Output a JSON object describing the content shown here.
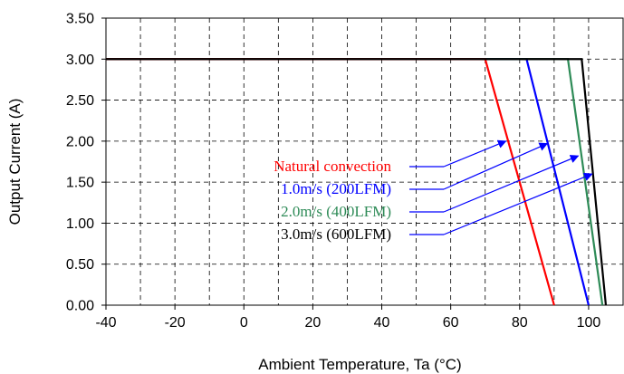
{
  "chart_data": {
    "type": "line",
    "title": "",
    "xlabel": "Ambient Temperature, Ta (°C)",
    "ylabel": "Output Current (A)",
    "xlim": [
      -40,
      110
    ],
    "ylim": [
      0,
      3.5
    ],
    "x_ticks": [
      -40,
      -20,
      0,
      20,
      40,
      60,
      80,
      100
    ],
    "y_ticks": [
      0,
      0.5,
      1,
      1.5,
      2,
      2.5,
      3,
      3.5
    ],
    "x_tick_labels": [
      "-40",
      "-20",
      "0",
      "20",
      "40",
      "60",
      "80",
      "100"
    ],
    "y_tick_labels": [
      "0.00",
      "0.50",
      "1.00",
      "1.50",
      "2.00",
      "2.50",
      "3.00",
      "3.50"
    ],
    "grid": true,
    "series": [
      {
        "name": "Natural convection",
        "color": "#ff0000",
        "x": [
          -40,
          70,
          90
        ],
        "y": [
          3.0,
          3.0,
          0.0
        ]
      },
      {
        "name": "1.0m/s (200LFM)",
        "color": "#0000ff",
        "x": [
          -40,
          82,
          100
        ],
        "y": [
          3.0,
          3.0,
          0.0
        ]
      },
      {
        "name": "2.0m/s (400LFM)",
        "color": "#2e8b57",
        "x": [
          -40,
          94,
          104
        ],
        "y": [
          3.0,
          3.0,
          0.0
        ]
      },
      {
        "name": "3.0m/s (600LFM)",
        "color": "#000000",
        "x": [
          -40,
          98,
          105
        ],
        "y": [
          3.0,
          3.0,
          0.0
        ]
      }
    ],
    "annotations": [
      {
        "text": "Natural convection",
        "color": "#ff0000",
        "arrow_to": [
          76,
          2.0
        ]
      },
      {
        "text": "1.0m/s (200LFM)",
        "color": "#0000ff",
        "arrow_to": [
          88,
          1.97
        ]
      },
      {
        "text": "2.0m/s (400LFM)",
        "color": "#2e8b57",
        "arrow_to": [
          97,
          1.82
        ]
      },
      {
        "text": "3.0m/s (600LFM)",
        "color": "#000000",
        "arrow_to": [
          101,
          1.6
        ]
      }
    ]
  }
}
